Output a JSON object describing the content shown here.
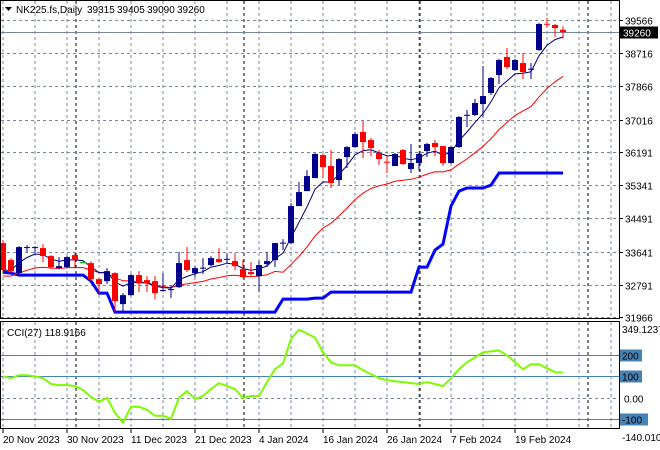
{
  "header": {
    "symbol": "NK225.fs,Daily",
    "open": "39315",
    "high": "39405",
    "low": "39090",
    "close": "39260"
  },
  "colors": {
    "bull": "#00008b",
    "bear": "#ff0000",
    "doji": "#00c000",
    "fast_line": "#00007f",
    "slow_line": "#ff0000",
    "lower_band": "#0000ff",
    "cci": "#7cfc00",
    "level_line": "#4682b4",
    "grid": "#778899"
  },
  "chart_data": [
    {
      "type": "candlestick",
      "title": "NK225.fs,Daily",
      "ylim": [
        31966,
        39566
      ],
      "y_ticks": [
        "39566",
        "38716",
        "37866",
        "37016",
        "36191",
        "35341",
        "34491",
        "33641",
        "32791",
        "31966"
      ],
      "x_tick_labels": [
        "20 Nov 2023",
        "30 Nov 2023",
        "11 Dec 2023",
        "21 Dec 2023",
        "4 Jan 2024",
        "16 Jan 2024",
        "26 Jan 2024",
        "7 Feb 2024",
        "19 Feb 2024"
      ],
      "current_price": "39260",
      "grid": true,
      "ohlc": [
        [
          33857,
          33934,
          33115,
          33166
        ],
        [
          33422,
          33474,
          33089,
          33140
        ],
        [
          33089,
          33780,
          33038,
          33755
        ],
        [
          33730,
          33806,
          33627,
          33755
        ],
        [
          33740,
          33780,
          33602,
          33755
        ],
        [
          33730,
          33832,
          33371,
          33525
        ],
        [
          33525,
          33550,
          33192,
          33243
        ],
        [
          33217,
          33499,
          33200,
          33268
        ],
        [
          33243,
          33525,
          33217,
          33499
        ],
        [
          33550,
          33602,
          33217,
          33422
        ],
        [
          33371,
          33396,
          33350,
          33371
        ],
        [
          33345,
          33396,
          32884,
          32936
        ],
        [
          32936,
          32961,
          32577,
          32808
        ],
        [
          32884,
          33217,
          32808,
          33140
        ],
        [
          33089,
          33115,
          32091,
          32372
        ],
        [
          32296,
          32577,
          32091,
          32526
        ],
        [
          32526,
          33064,
          32500,
          33038
        ],
        [
          33038,
          33140,
          32603,
          32833
        ],
        [
          32910,
          33012,
          32603,
          32833
        ],
        [
          32884,
          33012,
          32424,
          32577
        ],
        [
          32628,
          33089,
          32628,
          32654
        ],
        [
          32654,
          32760,
          32449,
          32680
        ],
        [
          32731,
          33627,
          32706,
          33345
        ],
        [
          33422,
          33755,
          33115,
          33166
        ],
        [
          33089,
          33268,
          32987,
          33217
        ],
        [
          33210,
          33474,
          33064,
          33230
        ],
        [
          33294,
          33525,
          33268,
          33474
        ],
        [
          33448,
          33730,
          33345,
          33371
        ],
        [
          33440,
          33602,
          33345,
          33455
        ],
        [
          33396,
          33602,
          33166,
          33268
        ],
        [
          33192,
          33422,
          32961,
          32987
        ],
        [
          33115,
          33371,
          32987,
          33064
        ],
        [
          33012,
          33396,
          32603,
          33294
        ],
        [
          33320,
          33627,
          33243,
          33396
        ],
        [
          33422,
          33857,
          33243,
          33857
        ],
        [
          33850,
          33960,
          33678,
          33870
        ],
        [
          33857,
          34881,
          33832,
          34804
        ],
        [
          34804,
          35419,
          34804,
          35163
        ],
        [
          35188,
          35726,
          35188,
          35572
        ],
        [
          35521,
          36162,
          35521,
          36136
        ],
        [
          36110,
          36136,
          35521,
          35803
        ],
        [
          35829,
          36238,
          35266,
          35394
        ],
        [
          35470,
          36034,
          35342,
          36008
        ],
        [
          36059,
          36340,
          35778,
          36315
        ],
        [
          36315,
          36699,
          36290,
          36648
        ],
        [
          36699,
          36980,
          36034,
          36443
        ],
        [
          36494,
          36545,
          36085,
          36290
        ],
        [
          36162,
          36238,
          35854,
          36008
        ],
        [
          35940,
          36085,
          35650,
          35931
        ],
        [
          35829,
          36162,
          35829,
          36136
        ],
        [
          36238,
          36264,
          35854,
          35880
        ],
        [
          35752,
          36392,
          35650,
          35906
        ],
        [
          35906,
          36162,
          35726,
          36136
        ],
        [
          36213,
          36418,
          36059,
          36392
        ],
        [
          36418,
          36494,
          36085,
          36315
        ],
        [
          36340,
          36340,
          35829,
          35906
        ],
        [
          35906,
          36340,
          35880,
          36315
        ],
        [
          36315,
          37108,
          36290,
          37083
        ],
        [
          37134,
          37262,
          36827,
          37140
        ],
        [
          37134,
          37544,
          37108,
          37441
        ],
        [
          37416,
          38388,
          37083,
          37620
        ],
        [
          37697,
          38110,
          37650,
          38081
        ],
        [
          38158,
          38570,
          37926,
          38542
        ],
        [
          38619,
          38849,
          38312,
          38363
        ],
        [
          38286,
          38570,
          38260,
          38542
        ],
        [
          38465,
          38721,
          38056,
          38235
        ],
        [
          38300,
          38465,
          38056,
          38320
        ],
        [
          38798,
          39490,
          38772,
          39464
        ],
        [
          39470,
          39617,
          39387,
          39455
        ],
        [
          39438,
          39464,
          39131,
          39361
        ],
        [
          39315,
          39405,
          39090,
          39260
        ]
      ]
    },
    {
      "type": "line",
      "title": "CCI(27) 118.9166",
      "label": "CCI(27)",
      "last_value": "118.9166",
      "ylim": [
        -140.01,
        349.1237
      ],
      "y_max_label": "349.1237",
      "y_min_label": "-140.010",
      "levels": [
        "200",
        "100",
        "-100"
      ],
      "zero_label": "0.00",
      "values": [
        101,
        92,
        106,
        106,
        101,
        92,
        65,
        60,
        60,
        55,
        37,
        5,
        -18,
        0,
        -69,
        -115,
        -41,
        -41,
        -55,
        -83,
        -83,
        -97,
        0,
        32,
        -5,
        9,
        41,
        69,
        55,
        41,
        0,
        9,
        9,
        74,
        134,
        161,
        276,
        318,
        300,
        281,
        212,
        166,
        152,
        152,
        152,
        129,
        111,
        92,
        83,
        78,
        74,
        69,
        65,
        74,
        65,
        55,
        92,
        134,
        166,
        189,
        212,
        217,
        221,
        198,
        166,
        134,
        157,
        157,
        138,
        120,
        119
      ]
    }
  ]
}
